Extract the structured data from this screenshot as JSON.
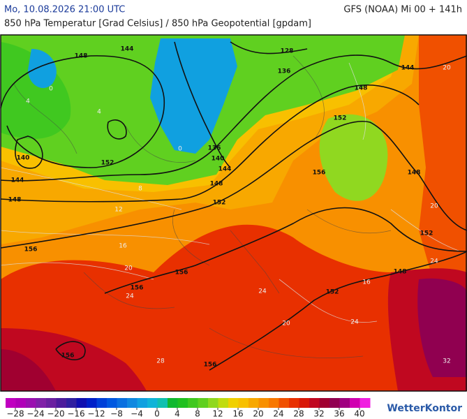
{
  "header": {
    "datetime": "Mo, 10.08.2026 21:00 UTC",
    "model": "GFS (NOAA) Mi 00 + 141h",
    "subtitle": "850 hPa Temperatur [Grad Celsius] / 850 hPa Geopotential [gpdam]"
  },
  "map": {
    "contour_labels": [
      "144",
      "128",
      "144",
      "148",
      "136",
      "148",
      "152",
      "140",
      "152",
      "136",
      "140",
      "144",
      "148",
      "156",
      "148",
      "144",
      "148",
      "152",
      "152",
      "156",
      "156",
      "148",
      "156",
      "152",
      "156",
      "156"
    ],
    "temperature_labels": [
      "0",
      "4",
      "8",
      "12",
      "16",
      "20",
      "24",
      "28",
      "32",
      "24",
      "24",
      "20",
      "16",
      "20",
      "24",
      "20",
      "0",
      "4"
    ]
  },
  "colorbar": {
    "colors": [
      "#c000c0",
      "#b000b8",
      "#9a10b0",
      "#8020a8",
      "#6a20a0",
      "#4c1c9c",
      "#3020a0",
      "#1010b0",
      "#0020c8",
      "#0040d8",
      "#0058e0",
      "#0a70e0",
      "#1088e0",
      "#10a0e0",
      "#10b4d8",
      "#10c0b0",
      "#10b830",
      "#20c020",
      "#40c820",
      "#60d020",
      "#90d820",
      "#c0dc10",
      "#f0d000",
      "#f8c000",
      "#f8a800",
      "#f89000",
      "#f87800",
      "#f05000",
      "#e83000",
      "#d81808",
      "#c00820",
      "#a00030",
      "#900050",
      "#a00080",
      "#d000b0",
      "#f020e0"
    ],
    "ticks": [
      {
        "value": -28,
        "label": "−28"
      },
      {
        "value": -24,
        "label": "−24"
      },
      {
        "value": -20,
        "label": "−20"
      },
      {
        "value": -16,
        "label": "−16"
      },
      {
        "value": -12,
        "label": "−12"
      },
      {
        "value": -8,
        "label": "−8"
      },
      {
        "value": -4,
        "label": "−4"
      },
      0,
      4,
      8,
      12,
      16,
      20,
      24,
      28,
      32,
      36,
      40
    ]
  },
  "footer": {
    "logo": "WetterKontor"
  }
}
